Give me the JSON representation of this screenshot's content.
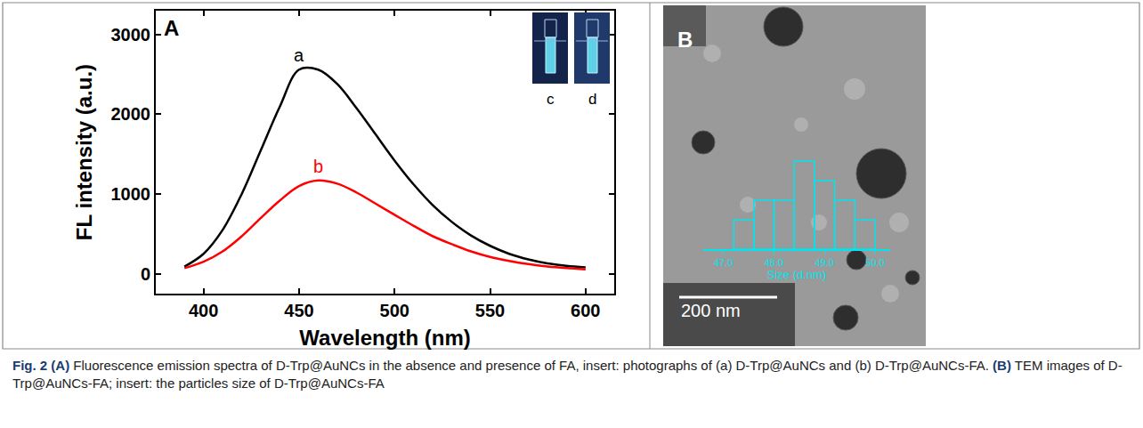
{
  "chart_data": [
    {
      "type": "line",
      "panel": "A",
      "x_label": "Wavelength (nm)",
      "y_label": "FL intensity (a.u.)",
      "x": [
        390,
        400,
        410,
        420,
        430,
        440,
        450,
        460,
        470,
        480,
        490,
        500,
        510,
        520,
        530,
        540,
        550,
        560,
        570,
        580,
        590,
        600
      ],
      "series": [
        {
          "name": "a",
          "color": "#000000",
          "values": [
            90,
            250,
            550,
            1000,
            1550,
            2100,
            2560,
            2560,
            2380,
            2080,
            1750,
            1420,
            1120,
            860,
            650,
            480,
            350,
            250,
            180,
            130,
            100,
            80
          ]
        },
        {
          "name": "b",
          "color": "#ff0000",
          "values": [
            70,
            150,
            280,
            470,
            700,
            920,
            1100,
            1170,
            1130,
            1020,
            880,
            740,
            600,
            470,
            370,
            280,
            210,
            160,
            120,
            90,
            70,
            55
          ]
        }
      ],
      "xlim": [
        375,
        615
      ],
      "xticks": [
        400,
        450,
        500,
        550,
        600
      ],
      "ylim": [
        -250,
        3300
      ],
      "yticks": [
        0,
        1000,
        2000,
        3000
      ],
      "grid": false,
      "insets": [
        "c",
        "d"
      ]
    },
    {
      "type": "histogram",
      "panel": "B",
      "x_label": "Size (d.nm)",
      "bins": [
        47.2,
        47.6,
        48.0,
        48.4,
        48.8,
        49.2,
        49.6,
        50.0
      ],
      "counts": [
        3,
        5,
        5,
        9,
        7,
        5,
        3
      ],
      "color": "#00e5ee",
      "xlim": [
        46.6,
        50.3
      ],
      "xticks": [
        {
          "value": 47,
          "label": "47.0"
        },
        {
          "value": 48,
          "label": "48.0"
        },
        {
          "value": 49,
          "label": "49.0"
        },
        {
          "value": 50,
          "label": "50.0"
        }
      ],
      "ylim": [
        0,
        10
      ],
      "tick_labels": "x",
      "grid": false,
      "scale_bar": "200 nm"
    }
  ],
  "caption": [
    {
      "text": "Fig. 2",
      "bold": true
    },
    {
      "text": " ",
      "bold": false
    },
    {
      "text": "(A)",
      "bold": true
    },
    {
      "text": " Fluorescence emission spectra of D-Trp@AuNCs in the absence and presence of FA, insert: photographs of (a) D-Trp@AuNCs and (b) D-Trp@AuNCs-FA. ",
      "bold": false
    },
    {
      "text": "(B)",
      "bold": true
    },
    {
      "text": " TEM images of D-Trp@AuNCs-FA; insert: the particles size of D-Trp@AuNCs-FA",
      "bold": false
    }
  ]
}
